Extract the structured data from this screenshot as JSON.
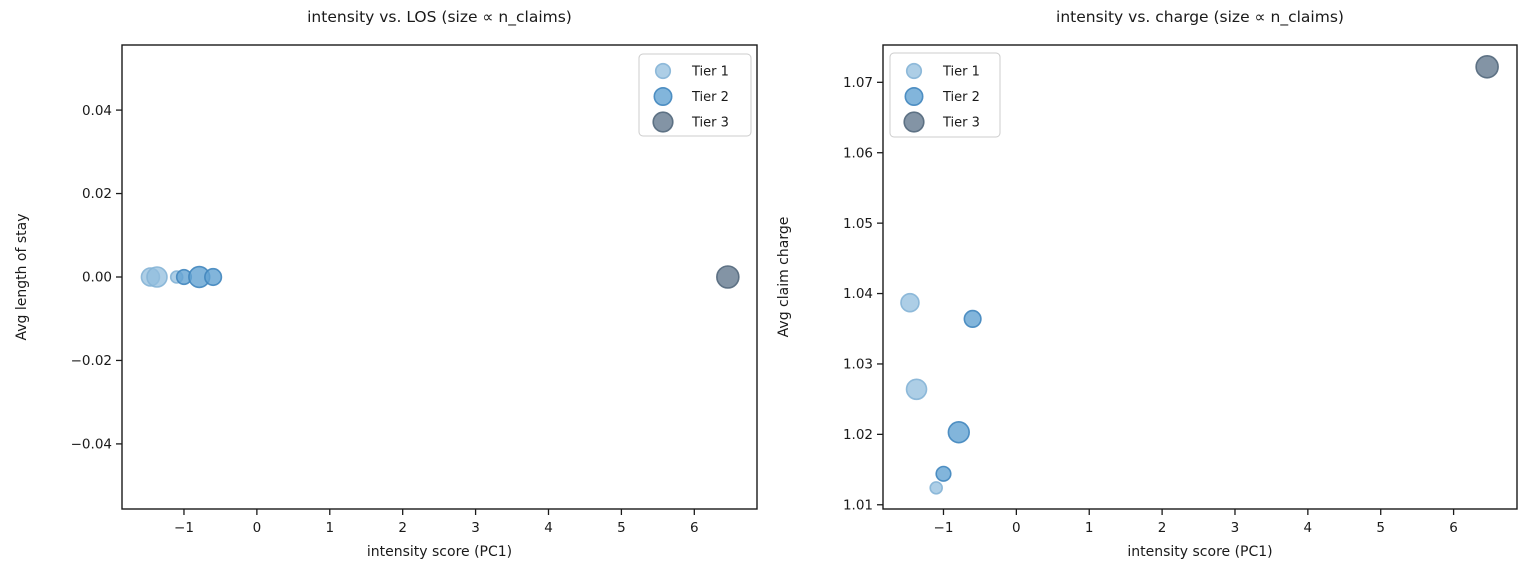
{
  "figure": {
    "background": "#ffffff"
  },
  "tiers": [
    {
      "label": "Tier 1",
      "fill": "#92bedd",
      "edge": "#85b4d6",
      "fill_opacity": 0.75,
      "edge_opacity": 0.9,
      "legend_r": 7.3
    },
    {
      "label": "Tier 2",
      "fill": "#63a2d2",
      "edge": "#4186be",
      "fill_opacity": 0.8,
      "edge_opacity": 0.9,
      "legend_r": 8.7
    },
    {
      "label": "Tier 3",
      "fill": "#64798e",
      "edge": "#53687c",
      "fill_opacity": 0.8,
      "edge_opacity": 0.9,
      "legend_r": 9.8
    }
  ],
  "chart_data": [
    {
      "type": "scatter",
      "title": "intensity vs. LOS (size ∝ n_claims)",
      "xlabel": "intensity score (PC1)",
      "ylabel": "Avg length of stay",
      "xlim": [
        -1.85,
        6.86
      ],
      "ylim": [
        -0.0556,
        0.0556
      ],
      "grid": false,
      "legend_position": "upper right",
      "xticks": [
        {
          "value": -1,
          "label": "−1"
        },
        {
          "value": 0,
          "label": "0"
        },
        {
          "value": 1,
          "label": "1"
        },
        {
          "value": 2,
          "label": "2"
        },
        {
          "value": 3,
          "label": "3"
        },
        {
          "value": 4,
          "label": "4"
        },
        {
          "value": 5,
          "label": "5"
        },
        {
          "value": 6,
          "label": "6"
        }
      ],
      "yticks": [
        {
          "value": -0.04,
          "label": "−0.04"
        },
        {
          "value": -0.02,
          "label": "−0.02"
        },
        {
          "value": 0.0,
          "label": "0.00"
        },
        {
          "value": 0.02,
          "label": "0.02"
        },
        {
          "value": 0.04,
          "label": "0.04"
        }
      ],
      "series": [
        {
          "tier": "Tier 1",
          "points": [
            {
              "x": -1.46,
              "y": 0.0,
              "r": 9
            },
            {
              "x": -1.37,
              "y": 0.0,
              "r": 10
            },
            {
              "x": -1.1,
              "y": 0.0,
              "r": 6
            }
          ]
        },
        {
          "tier": "Tier 2",
          "points": [
            {
              "x": -1.0,
              "y": 0.0,
              "r": 7.3
            },
            {
              "x": -0.79,
              "y": 0.0,
              "r": 10.4
            },
            {
              "x": -0.6,
              "y": 0.0,
              "r": 8.3
            }
          ]
        },
        {
          "tier": "Tier 3",
          "points": [
            {
              "x": 6.46,
              "y": 0.0,
              "r": 11
            }
          ]
        }
      ]
    },
    {
      "type": "scatter",
      "title": "intensity vs. charge (size ∝ n_claims)",
      "xlabel": "intensity score (PC1)",
      "ylabel": "Avg claim charge",
      "xlim": [
        -1.83,
        6.87
      ],
      "ylim": [
        1.0094,
        1.0753
      ],
      "grid": false,
      "legend_position": "upper left",
      "xticks": [
        {
          "value": -1,
          "label": "−1"
        },
        {
          "value": 0,
          "label": "0"
        },
        {
          "value": 1,
          "label": "1"
        },
        {
          "value": 2,
          "label": "2"
        },
        {
          "value": 3,
          "label": "3"
        },
        {
          "value": 4,
          "label": "4"
        },
        {
          "value": 5,
          "label": "5"
        },
        {
          "value": 6,
          "label": "6"
        }
      ],
      "yticks": [
        {
          "value": 1.01,
          "label": "1.01"
        },
        {
          "value": 1.02,
          "label": "1.02"
        },
        {
          "value": 1.03,
          "label": "1.03"
        },
        {
          "value": 1.04,
          "label": "1.04"
        },
        {
          "value": 1.05,
          "label": "1.05"
        },
        {
          "value": 1.06,
          "label": "1.06"
        },
        {
          "value": 1.07,
          "label": "1.07"
        }
      ],
      "series": [
        {
          "tier": "Tier 1",
          "points": [
            {
              "x": -1.46,
              "y": 1.0387,
              "r": 9
            },
            {
              "x": -1.37,
              "y": 1.0264,
              "r": 10
            },
            {
              "x": -1.1,
              "y": 1.0124,
              "r": 6
            }
          ]
        },
        {
          "tier": "Tier 2",
          "points": [
            {
              "x": -1.0,
              "y": 1.0144,
              "r": 7.3
            },
            {
              "x": -0.79,
              "y": 1.0203,
              "r": 10.4
            },
            {
              "x": -0.6,
              "y": 1.0364,
              "r": 8.3
            }
          ]
        },
        {
          "tier": "Tier 3",
          "points": [
            {
              "x": 6.46,
              "y": 1.0722,
              "r": 11
            }
          ]
        }
      ]
    }
  ]
}
